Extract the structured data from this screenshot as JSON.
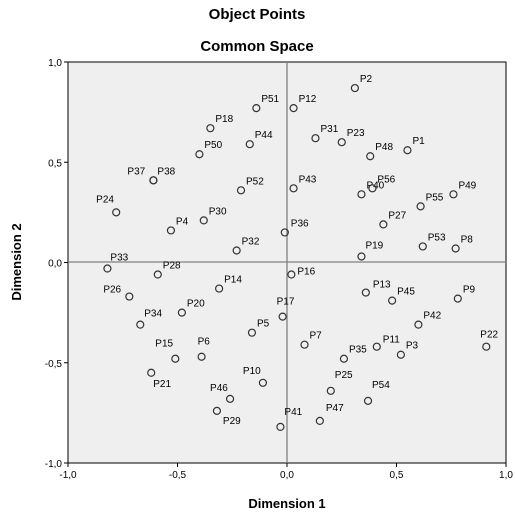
{
  "chart_data": {
    "type": "scatter",
    "title": "Object Points",
    "subtitle": "Common Space",
    "xlabel": "Dimension 1",
    "ylabel": "Dimension 2",
    "xlim": [
      -1.0,
      1.0
    ],
    "ylim": [
      -1.0,
      1.0
    ],
    "x_ticks": [
      "-1,0",
      "-0,5",
      "0,0",
      "0,5",
      "1,0"
    ],
    "y_ticks": [
      "1,0",
      "0,5",
      "0,0",
      "-0,5",
      "-1,0"
    ],
    "grid": false,
    "reference_lines": [
      0,
      0
    ],
    "colors": {
      "background": "#efefef",
      "marker_edge": "#333333",
      "reference": "#808080"
    },
    "points": [
      {
        "label": "P1",
        "x": 0.55,
        "y": 0.56
      },
      {
        "label": "P2",
        "x": 0.31,
        "y": 0.87
      },
      {
        "label": "P3",
        "x": 0.52,
        "y": -0.46
      },
      {
        "label": "P4",
        "x": -0.53,
        "y": 0.16
      },
      {
        "label": "P5",
        "x": -0.16,
        "y": -0.35
      },
      {
        "label": "P6",
        "x": -0.39,
        "y": -0.47
      },
      {
        "label": "P7",
        "x": 0.08,
        "y": -0.41
      },
      {
        "label": "P8",
        "x": 0.77,
        "y": 0.07
      },
      {
        "label": "P9",
        "x": 0.78,
        "y": -0.18
      },
      {
        "label": "P10",
        "x": -0.11,
        "y": -0.6
      },
      {
        "label": "P11",
        "x": 0.41,
        "y": -0.42
      },
      {
        "label": "P12",
        "x": 0.03,
        "y": 0.77
      },
      {
        "label": "P13",
        "x": 0.36,
        "y": -0.15
      },
      {
        "label": "P14",
        "x": -0.31,
        "y": -0.13
      },
      {
        "label": "P15",
        "x": -0.51,
        "y": -0.48
      },
      {
        "label": "P16",
        "x": 0.02,
        "y": -0.06
      },
      {
        "label": "P17",
        "x": -0.02,
        "y": -0.27
      },
      {
        "label": "P18",
        "x": -0.35,
        "y": 0.67
      },
      {
        "label": "P19",
        "x": 0.34,
        "y": 0.03
      },
      {
        "label": "P20",
        "x": -0.48,
        "y": -0.25
      },
      {
        "label": "P21",
        "x": -0.62,
        "y": -0.55
      },
      {
        "label": "P22",
        "x": 0.91,
        "y": -0.42
      },
      {
        "label": "P23",
        "x": 0.25,
        "y": 0.6
      },
      {
        "label": "P24",
        "x": -0.78,
        "y": 0.25
      },
      {
        "label": "P25",
        "x": 0.2,
        "y": -0.64
      },
      {
        "label": "P26",
        "x": -0.72,
        "y": -0.17
      },
      {
        "label": "P27",
        "x": 0.44,
        "y": 0.19
      },
      {
        "label": "P28",
        "x": -0.59,
        "y": -0.06
      },
      {
        "label": "P29",
        "x": -0.32,
        "y": -0.74
      },
      {
        "label": "P30",
        "x": -0.38,
        "y": 0.21
      },
      {
        "label": "P31",
        "x": 0.13,
        "y": 0.62
      },
      {
        "label": "P32",
        "x": -0.23,
        "y": 0.06
      },
      {
        "label": "P33",
        "x": -0.82,
        "y": -0.03
      },
      {
        "label": "P34",
        "x": -0.67,
        "y": -0.31
      },
      {
        "label": "P35",
        "x": 0.26,
        "y": -0.48
      },
      {
        "label": "P36",
        "x": -0.01,
        "y": 0.15
      },
      {
        "label": "P37",
        "x": -0.61,
        "y": 0.41
      },
      {
        "label": "P38",
        "x": -0.61,
        "y": 0.41
      },
      {
        "label": "P40",
        "x": 0.34,
        "y": 0.34
      },
      {
        "label": "P41",
        "x": -0.03,
        "y": -0.82
      },
      {
        "label": "P42",
        "x": 0.6,
        "y": -0.31
      },
      {
        "label": "P43",
        "x": 0.03,
        "y": 0.37
      },
      {
        "label": "P44",
        "x": -0.17,
        "y": 0.59
      },
      {
        "label": "P45",
        "x": 0.48,
        "y": -0.19
      },
      {
        "label": "P46",
        "x": -0.26,
        "y": -0.68
      },
      {
        "label": "P47",
        "x": 0.15,
        "y": -0.79
      },
      {
        "label": "P48",
        "x": 0.38,
        "y": 0.53
      },
      {
        "label": "P49",
        "x": 0.76,
        "y": 0.34
      },
      {
        "label": "P50",
        "x": -0.4,
        "y": 0.54
      },
      {
        "label": "P51",
        "x": -0.14,
        "y": 0.77
      },
      {
        "label": "P52",
        "x": -0.21,
        "y": 0.36
      },
      {
        "label": "P53",
        "x": 0.62,
        "y": 0.08
      },
      {
        "label": "P54",
        "x": 0.37,
        "y": -0.69
      },
      {
        "label": "P55",
        "x": 0.61,
        "y": 0.28
      },
      {
        "label": "P56",
        "x": 0.39,
        "y": 0.37
      }
    ]
  }
}
